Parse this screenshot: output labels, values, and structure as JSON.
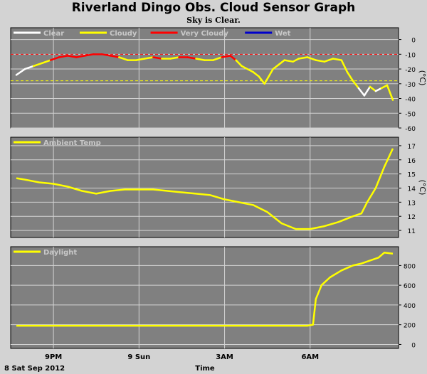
{
  "title": "Riverland Dingo Obs. Cloud Sensor Graph",
  "subtitle": "Sky is Clear.",
  "x_axis": {
    "ticks": [
      "9PM",
      "9 Sun",
      "3AM",
      "6AM"
    ],
    "date_label": "8 Sat Sep 2012",
    "label": "Time"
  },
  "chart_data": [
    {
      "type": "line",
      "name": "cloud",
      "legend": [
        "Clear",
        "Cloudy",
        "Very Cloudy",
        "Wet"
      ],
      "series_colors": {
        "Clear": "#ffffff",
        "Cloudy": "#ffff00",
        "Very Cloudy": "#ff0000",
        "Wet": "#0000cc"
      },
      "ylabel": "(°C)",
      "yticks": [
        0,
        -10,
        -20,
        -30,
        -40,
        -50,
        -60
      ],
      "ylim": [
        -60,
        8
      ],
      "reference_lines": [
        {
          "y": -10,
          "color": "#ff0000"
        },
        {
          "y": -28,
          "color": "#ffff00"
        }
      ],
      "x_hours": [
        19.7,
        20.0,
        20.3,
        20.6,
        20.9,
        21.2,
        21.5,
        21.8,
        22.1,
        22.4,
        22.7,
        23.0,
        23.3,
        23.6,
        23.9,
        24.2,
        24.5,
        24.8,
        25.1,
        25.4,
        25.7,
        26.0,
        26.3,
        26.6,
        26.9,
        27.2,
        27.4,
        27.6,
        27.8,
        28.0,
        28.2,
        28.4,
        28.7,
        28.9,
        29.1,
        29.4,
        29.6,
        29.9,
        30.2,
        30.5,
        30.8,
        31.1,
        31.3,
        31.5,
        31.7,
        31.9,
        32.1,
        32.3,
        32.5,
        32.7,
        32.9
      ],
      "values": [
        -24,
        -20,
        -18,
        -16,
        -14,
        -12,
        -11,
        -12,
        -11,
        -10,
        -10,
        -11,
        -12,
        -14,
        -14,
        -13,
        -12,
        -13,
        -13,
        -12,
        -12,
        -13,
        -14,
        -14,
        -12,
        -11,
        -14,
        -18,
        -20,
        -22,
        -25,
        -30,
        -20,
        -17,
        -14,
        -15,
        -13,
        -12,
        -14,
        -15,
        -13,
        -14,
        -22,
        -28,
        -33,
        -38,
        -32,
        -35,
        -33,
        -31,
        -41
      ],
      "categories": [
        "Clear",
        "Clear",
        "Cloudy",
        "Cloudy",
        "Very Cloudy",
        "Very Cloudy",
        "Very Cloudy",
        "Very Cloudy",
        "Very Cloudy",
        "Very Cloudy",
        "Very Cloudy",
        "Very Cloudy",
        "Cloudy",
        "Cloudy",
        "Cloudy",
        "Cloudy",
        "Very Cloudy",
        "Cloudy",
        "Cloudy",
        "Very Cloudy",
        "Very Cloudy",
        "Cloudy",
        "Cloudy",
        "Cloudy",
        "Very Cloudy",
        "Very Cloudy",
        "Cloudy",
        "Cloudy",
        "Cloudy",
        "Cloudy",
        "Cloudy",
        "Cloudy",
        "Cloudy",
        "Cloudy",
        "Cloudy",
        "Cloudy",
        "Cloudy",
        "Cloudy",
        "Cloudy",
        "Cloudy",
        "Cloudy",
        "Cloudy",
        "Cloudy",
        "Cloudy",
        "Clear",
        "Clear",
        "Cloudy",
        "Clear",
        "Cloudy",
        "Cloudy",
        "Clear"
      ]
    },
    {
      "type": "line",
      "name": "ambient",
      "legend": [
        "Ambient Temp"
      ],
      "series_colors": {
        "Ambient Temp": "#ffff00"
      },
      "ylabel": "(°C)",
      "yticks": [
        11,
        12,
        13,
        14,
        15,
        16,
        17
      ],
      "ylim": [
        10.5,
        17.6
      ],
      "x_hours": [
        19.7,
        20.0,
        20.5,
        21.0,
        21.5,
        22.0,
        22.5,
        23.0,
        23.5,
        24.0,
        24.5,
        25.0,
        25.5,
        26.0,
        26.5,
        27.0,
        27.5,
        28.0,
        28.5,
        29.0,
        29.5,
        30.0,
        30.5,
        31.0,
        31.5,
        31.8,
        32.0,
        32.3,
        32.6,
        32.9
      ],
      "values": [
        14.7,
        14.6,
        14.4,
        14.3,
        14.1,
        13.8,
        13.6,
        13.8,
        13.9,
        13.9,
        13.9,
        13.8,
        13.7,
        13.6,
        13.5,
        13.2,
        13.0,
        12.8,
        12.3,
        11.5,
        11.1,
        11.1,
        11.3,
        11.6,
        12.0,
        12.2,
        13.0,
        14.0,
        15.5,
        16.8
      ]
    },
    {
      "type": "line",
      "name": "daylight",
      "legend": [
        "Daylight"
      ],
      "series_colors": {
        "Daylight": "#ffff00"
      },
      "yticks": [
        0,
        200,
        400,
        600,
        800
      ],
      "ylim": [
        -40,
        990
      ],
      "x_hours": [
        19.7,
        22.0,
        24.0,
        26.0,
        28.0,
        29.5,
        29.9,
        30.1,
        30.2,
        30.4,
        30.7,
        31.1,
        31.5,
        31.8,
        32.1,
        32.4,
        32.6,
        32.9
      ],
      "values": [
        190,
        190,
        190,
        190,
        190,
        190,
        190,
        200,
        460,
        600,
        680,
        750,
        800,
        820,
        850,
        880,
        930,
        920
      ]
    }
  ]
}
